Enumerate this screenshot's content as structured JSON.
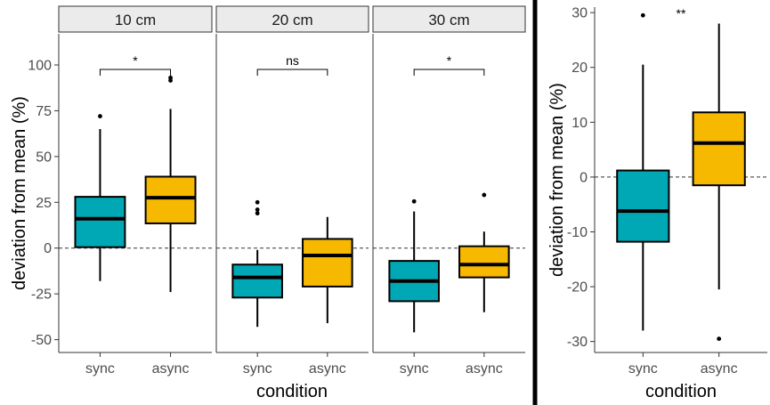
{
  "chart_data": [
    {
      "type": "boxplot",
      "title": "",
      "xlabel": "condition",
      "ylabel": "deviation from mean (%)",
      "ylim": [
        -57,
        117
      ],
      "yticks": [
        -50,
        -25,
        0,
        25,
        50,
        75,
        100
      ],
      "ytick_labels": [
        "-50",
        "-25",
        "0",
        "25",
        "50",
        "75",
        "100"
      ],
      "reference_line": 0,
      "categories": [
        "sync",
        "async"
      ],
      "colors": {
        "sync": "#00a8b5",
        "async": "#f7b800"
      },
      "facets": [
        {
          "label": "10 cm",
          "significance": "*",
          "boxes": [
            {
              "category": "sync",
              "whisker_low": -18,
              "q1": 0.5,
              "median": 16,
              "q3": 28,
              "whisker_high": 65,
              "outliers": [
                72
              ]
            },
            {
              "category": "async",
              "whisker_low": -24,
              "q1": 13.5,
              "median": 27.5,
              "q3": 39,
              "whisker_high": 76,
              "outliers": [
                91.5,
                93
              ]
            }
          ]
        },
        {
          "label": "20 cm",
          "significance": "ns",
          "boxes": [
            {
              "category": "sync",
              "whisker_low": -43,
              "q1": -27,
              "median": -16,
              "q3": -9,
              "whisker_high": -1,
              "outliers": [
                19,
                21,
                25
              ]
            },
            {
              "category": "async",
              "whisker_low": -41,
              "q1": -21,
              "median": -4,
              "q3": 5,
              "whisker_high": 17,
              "outliers": []
            }
          ]
        },
        {
          "label": "30 cm",
          "significance": "*",
          "boxes": [
            {
              "category": "sync",
              "whisker_low": -46,
              "q1": -29,
              "median": -18,
              "q3": -7,
              "whisker_high": 20,
              "outliers": [
                25.5
              ]
            },
            {
              "category": "async",
              "whisker_low": -35,
              "q1": -16,
              "median": -9,
              "q3": 1,
              "whisker_high": 9,
              "outliers": [
                29
              ]
            }
          ]
        }
      ]
    },
    {
      "type": "boxplot",
      "title": "",
      "xlabel": "condition",
      "ylabel": "deviation from mean (%)",
      "ylim": [
        -32,
        31
      ],
      "yticks": [
        -30,
        -20,
        -10,
        0,
        10,
        20,
        30
      ],
      "ytick_labels": [
        "-30",
        "-20",
        "-10",
        "0",
        "10",
        "20",
        "30"
      ],
      "reference_line": 0,
      "categories": [
        "sync",
        "async"
      ],
      "colors": {
        "sync": "#00a8b5",
        "async": "#f7b800"
      },
      "significance": "**",
      "boxes": [
        {
          "category": "sync",
          "whisker_low": -28,
          "q1": -11.8,
          "median": -6.2,
          "q3": 1.2,
          "whisker_high": 20.5,
          "outliers": [
            29.5
          ]
        },
        {
          "category": "async",
          "whisker_low": -20.5,
          "q1": -1.5,
          "median": 6.2,
          "q3": 11.8,
          "whisker_high": 28,
          "outliers": [
            -29.5
          ]
        }
      ]
    }
  ]
}
